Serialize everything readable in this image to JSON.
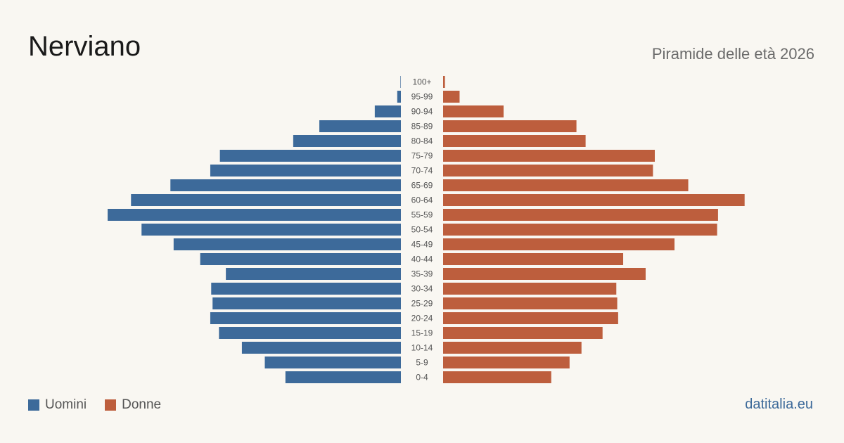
{
  "header": {
    "title": "Nerviano",
    "subtitle": "Piramide delle età 2026"
  },
  "legend": {
    "men_label": "Uomini",
    "women_label": "Donne"
  },
  "footer": {
    "source": "datitalia.eu"
  },
  "colors": {
    "men": "#3d6a9a",
    "women": "#bd5e3d",
    "tick_label": "#555555"
  },
  "chart_data": {
    "type": "bar",
    "orientation": "horizontal-mirrored",
    "categories": [
      "100+",
      "95-99",
      "90-94",
      "85-89",
      "80-84",
      "75-79",
      "70-74",
      "65-69",
      "60-64",
      "55-59",
      "50-54",
      "45-49",
      "40-44",
      "35-39",
      "30-34",
      "25-29",
      "20-24",
      "15-19",
      "10-14",
      "5-9",
      "0-4"
    ],
    "series": [
      {
        "name": "Uomini",
        "values": [
          1,
          8,
          57,
          178,
          235,
          395,
          416,
          503,
          589,
          640,
          566,
          496,
          438,
          382,
          414,
          411,
          416,
          397,
          347,
          297,
          252
        ]
      },
      {
        "name": "Donne",
        "values": [
          4,
          36,
          132,
          291,
          311,
          462,
          458,
          535,
          658,
          600,
          598,
          505,
          393,
          442,
          378,
          380,
          382,
          348,
          302,
          276,
          236
        ]
      }
    ],
    "xlim": [
      0,
      660
    ],
    "grid": false,
    "legend_position": "bottom-left"
  }
}
